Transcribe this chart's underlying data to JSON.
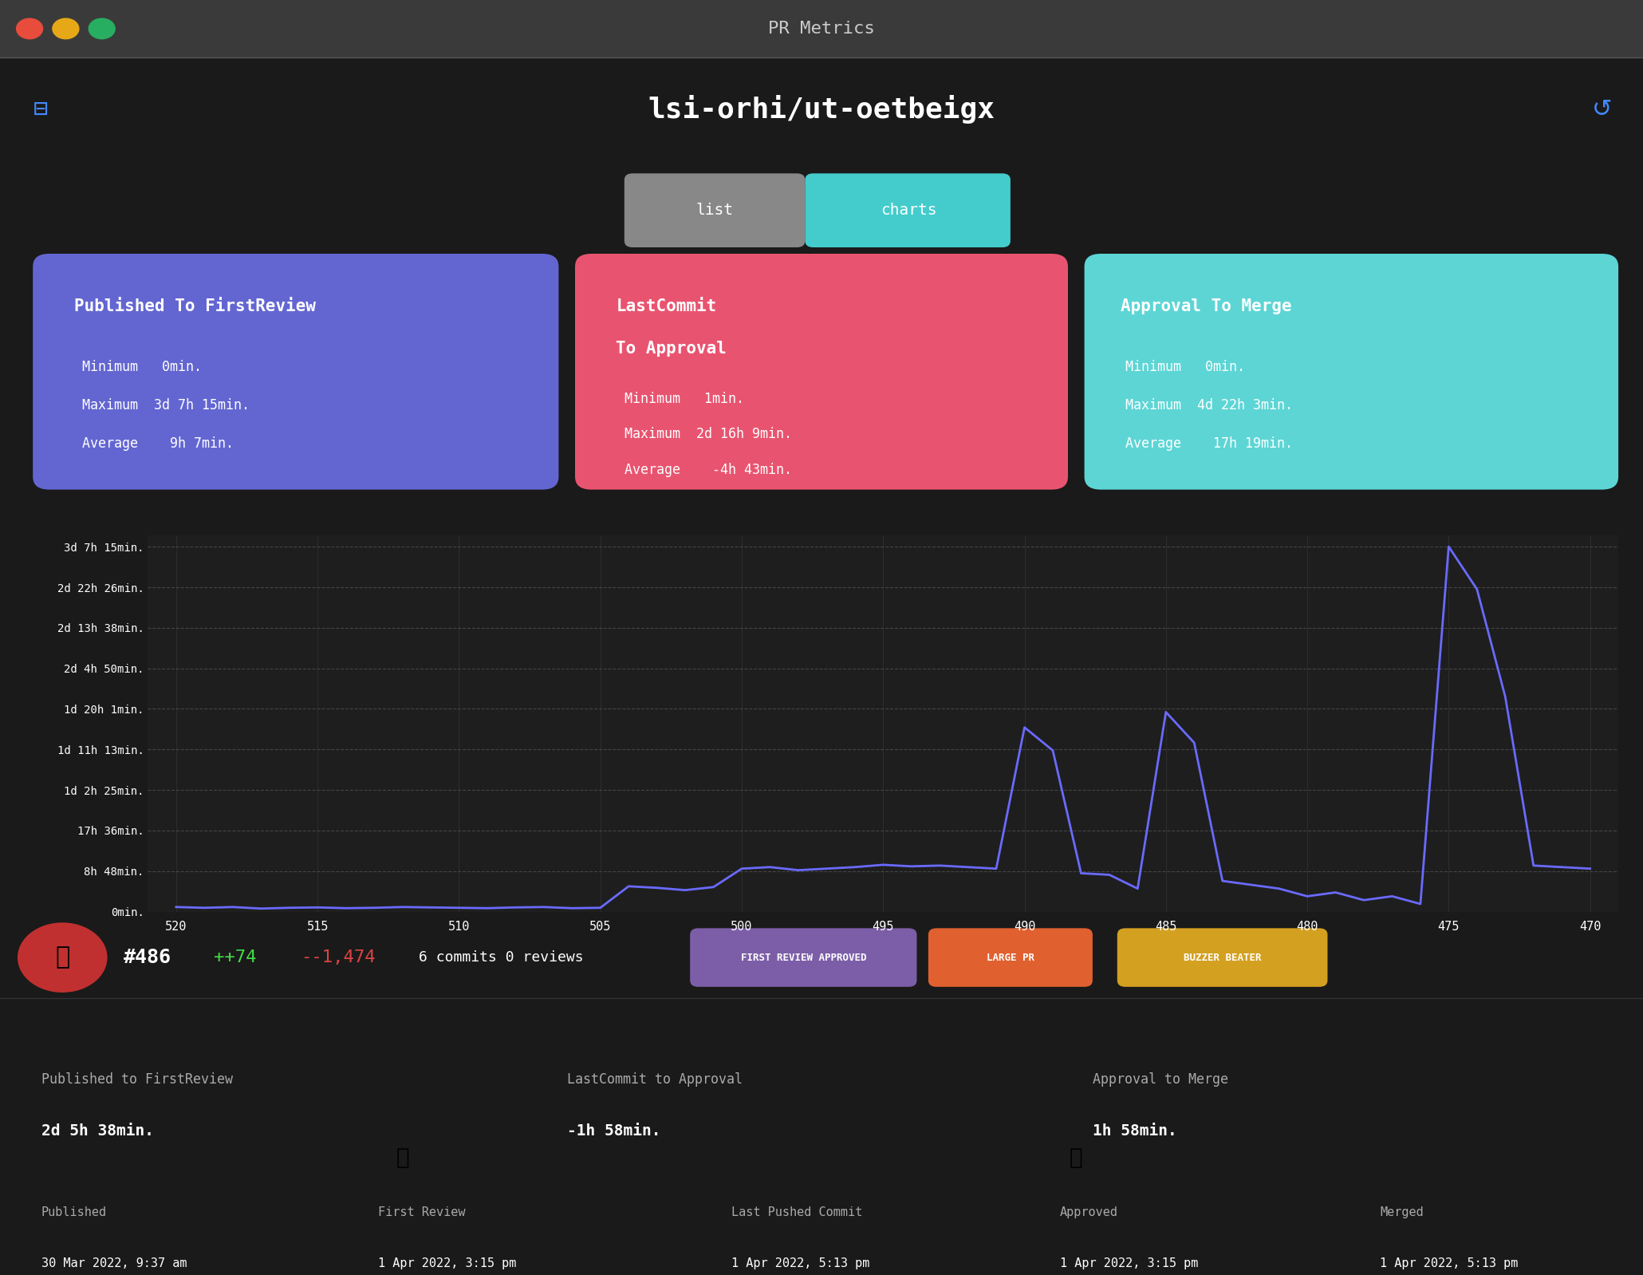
{
  "bg_color": "#1a1a1a",
  "titlebar_color": "#3a3a3a",
  "titlebar_text": "PR Metrics",
  "header_text": "lsi-orhi/ut-oetbeigx",
  "card1": {
    "title": "Published To FirstReview",
    "color": "#6366d1",
    "min": "0min.",
    "max": "3d 7h 15min.",
    "avg": "9h 7min."
  },
  "card2": {
    "title_line1": "LastCommit",
    "title_line2": "To Approval",
    "color": "#e85470",
    "min": "1min.",
    "max": "2d 16h 9min.",
    "avg": "-4h 43min."
  },
  "card3": {
    "title": "Approval To Merge",
    "color": "#5dd5d5",
    "min": "0min.",
    "max": "4d 22h 3min.",
    "avg": "17h 19min."
  },
  "yticks": [
    "0min.",
    "8h 48min.",
    "17h 36min.",
    "1d 2h 25min.",
    "1d 11h 13min.",
    "1d 20h 1min.",
    "2d 4h 50min.",
    "2d 13h 38min.",
    "2d 22h 26min.",
    "3d 7h 15min."
  ],
  "ytick_vals": [
    0,
    528,
    1056,
    1585,
    2113,
    2641,
    3170,
    3698,
    4226,
    4755
  ],
  "xticks": [
    520,
    515,
    510,
    505,
    500,
    495,
    490,
    485,
    480,
    475,
    470
  ],
  "x_values": [
    520,
    519,
    518,
    517,
    516,
    515,
    514,
    513,
    512,
    511,
    510,
    509,
    508,
    507,
    506,
    505,
    504,
    503,
    502,
    501,
    500,
    499,
    498,
    497,
    496,
    495,
    494,
    493,
    492,
    491,
    490,
    489,
    488,
    487,
    486,
    485,
    484,
    483,
    482,
    481,
    480,
    479,
    478,
    477,
    476,
    475,
    474,
    473,
    472,
    471,
    470
  ],
  "y_values": [
    60,
    50,
    60,
    40,
    50,
    55,
    45,
    50,
    60,
    55,
    50,
    45,
    55,
    60,
    45,
    50,
    330,
    310,
    280,
    320,
    560,
    580,
    540,
    560,
    580,
    610,
    590,
    600,
    580,
    560,
    2400,
    2100,
    500,
    480,
    300,
    2600,
    2200,
    400,
    350,
    300,
    200,
    250,
    150,
    200,
    100,
    4755,
    4200,
    2800,
    600,
    580,
    560
  ],
  "line_color": "#6a6aff",
  "chart_bg": "#1e1e1e",
  "grid_color": "#444444",
  "axis_text_color": "#ffffff",
  "pr_number": "#486",
  "pr_additions": "++74",
  "pr_deletions": "--1,474",
  "pr_commits": "6 commits 0 reviews",
  "tag1": "FIRST REVIEW APPROVED",
  "tag2": "LARGE PR",
  "tag3": "BUZZER BEATER",
  "tag1_color": "#7b5ea7",
  "tag2_color": "#e06030",
  "tag3_color": "#d4a020",
  "bottom_sections": [
    {
      "label": "Published to FirstReview",
      "value": "2d 5h 38min."
    },
    {
      "label": "LastCommit to Approval",
      "value": "-1h 58min."
    },
    {
      "label": "Approval to Merge",
      "value": "1h 58min."
    }
  ],
  "timeline_labels": [
    "Published",
    "First Review",
    "Last Pushed Commit",
    "Approved",
    "Merged"
  ],
  "timeline_dates": [
    "30 Mar 2022, 9:37 am",
    "1 Apr 2022, 3:15 pm",
    "1 Apr 2022, 5:13 pm",
    "1 Apr 2022, 3:15 pm",
    "1 Apr 2022, 5:13 pm"
  ],
  "additions_color": "#44dd44",
  "deletions_color": "#dd4444"
}
